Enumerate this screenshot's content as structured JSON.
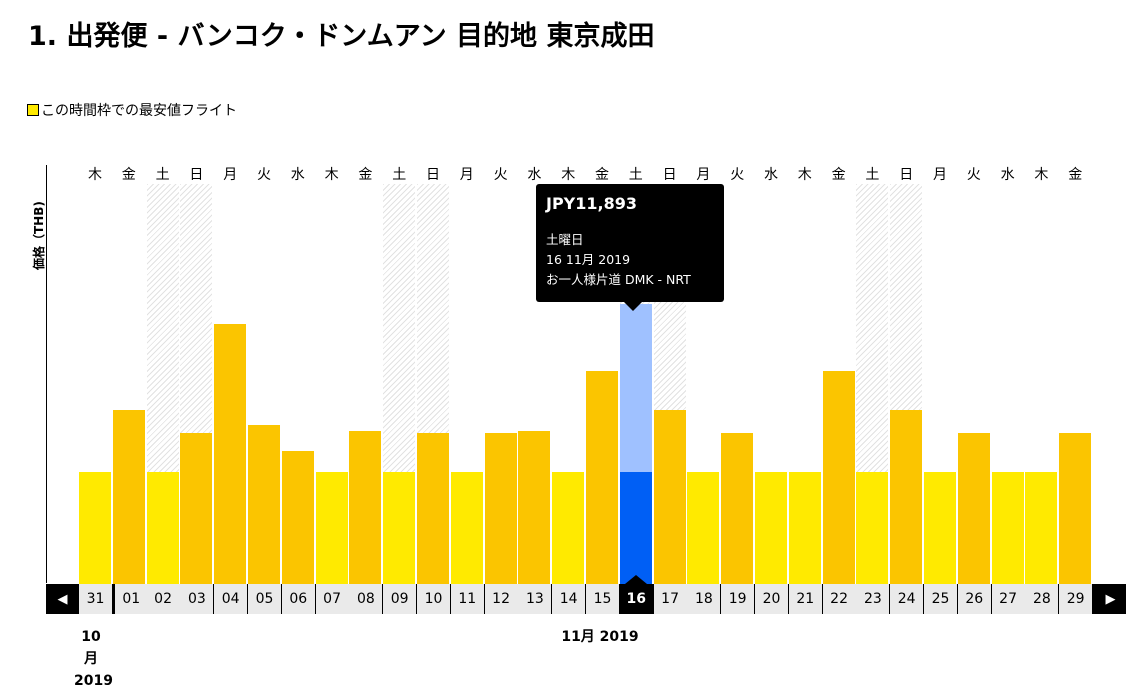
{
  "header": {
    "title": "1. 出発便 - バンコク・ドンムアン 目的地 東京成田",
    "legend": "この時間枠での最安値フライト",
    "y_axis_label": "価格（THB)"
  },
  "colors": {
    "cheapest": "#ffea00",
    "other": "#fbc500",
    "selected_bar": "#005ff5",
    "selected_top": "#9fc1ff",
    "weekend_stripe": "#e2e2e2"
  },
  "navigation": {
    "prev_icon": "triangle-left-icon",
    "next_icon": "triangle-right-icon",
    "prev_glyph": "◀",
    "next_glyph": "▶"
  },
  "months": {
    "october": [
      "10",
      "月",
      "2019"
    ],
    "november": "11月 2019"
  },
  "tooltip": {
    "price": "JPY11,893",
    "weekday": "土曜日",
    "date": "16 11月 2019",
    "route": "お一人様片道 DMK - NRT"
  },
  "selected_date": "16",
  "chart_data": {
    "type": "bar",
    "categories": [
      "31",
      "01",
      "02",
      "03",
      "04",
      "05",
      "06",
      "07",
      "08",
      "09",
      "10",
      "11",
      "12",
      "13",
      "14",
      "15",
      "16",
      "17",
      "18",
      "19",
      "20",
      "21",
      "22",
      "23",
      "24",
      "25",
      "26",
      "27",
      "28",
      "29"
    ],
    "weekdays": [
      "木",
      "金",
      "土",
      "日",
      "月",
      "火",
      "水",
      "木",
      "金",
      "土",
      "日",
      "月",
      "火",
      "水",
      "木",
      "金",
      "土",
      "日",
      "月",
      "火",
      "水",
      "木",
      "金",
      "土",
      "日",
      "月",
      "火",
      "水",
      "木",
      "金"
    ],
    "weekend_flags": [
      false,
      false,
      true,
      true,
      false,
      false,
      false,
      false,
      false,
      true,
      true,
      false,
      false,
      false,
      false,
      false,
      true,
      true,
      false,
      false,
      false,
      false,
      false,
      true,
      true,
      false,
      false,
      false,
      false,
      false
    ],
    "cheapest_flags": [
      true,
      false,
      true,
      false,
      false,
      false,
      false,
      true,
      false,
      true,
      false,
      true,
      false,
      false,
      true,
      false,
      true,
      false,
      true,
      false,
      true,
      true,
      false,
      true,
      false,
      true,
      false,
      true,
      true,
      false
    ],
    "relative_values": [
      0.43,
      0.67,
      0.43,
      0.58,
      1.0,
      0.61,
      0.51,
      0.43,
      0.59,
      0.43,
      0.58,
      0.43,
      0.58,
      0.59,
      0.43,
      0.82,
      0.43,
      0.67,
      0.43,
      0.58,
      0.43,
      0.43,
      0.82,
      0.43,
      0.67,
      0.43,
      0.58,
      0.43,
      0.43,
      0.58
    ],
    "selected_index": 16,
    "y_axis_label": "価格（THB)"
  }
}
